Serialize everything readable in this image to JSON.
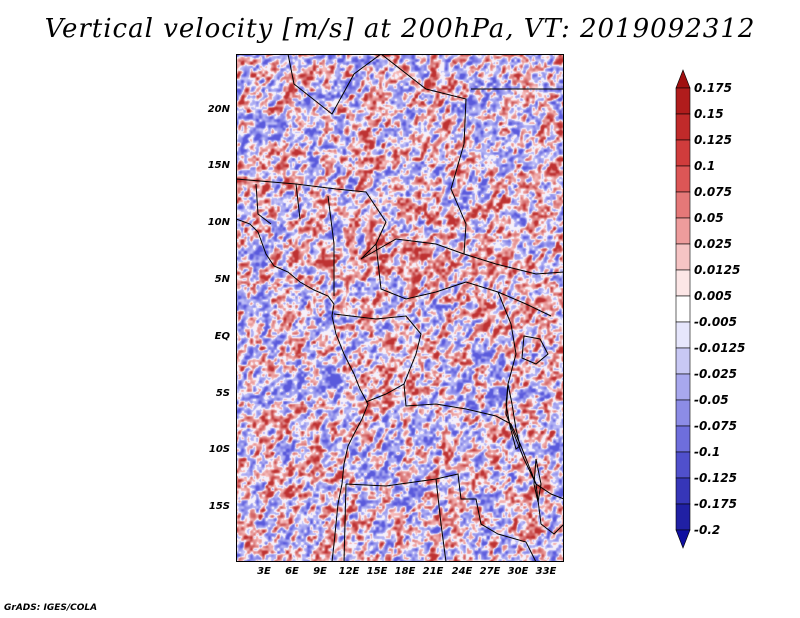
{
  "title": "Vertical velocity [m/s] at 200hPa, VT: 2019092312",
  "footer": "GrADS: IGES/COLA",
  "map": {
    "lat_labels": [
      "20N",
      "15N",
      "10N",
      "5N",
      "EQ",
      "5S",
      "10S",
      "15S"
    ],
    "lon_labels": [
      "3E",
      "6E",
      "9E",
      "12E",
      "15E",
      "18E",
      "21E",
      "24E",
      "27E",
      "30E",
      "33E"
    ]
  },
  "colorbar": {
    "labels": [
      "0.175",
      "0.15",
      "0.125",
      "0.1",
      "0.075",
      "0.05",
      "0.025",
      "0.0125",
      "0.005",
      "-0.005",
      "-0.0125",
      "-0.025",
      "-0.05",
      "-0.075",
      "-0.1",
      "-0.125",
      "-0.175",
      "-0.2"
    ],
    "colors": [
      "#a01010",
      "#b01c1c",
      "#c02a2a",
      "#d03c3c",
      "#dc5656",
      "#e57878",
      "#ee9c9c",
      "#f6c4c4",
      "#fce6e6",
      "#ffffff",
      "#e6e6fc",
      "#c8c8f4",
      "#a8a8ee",
      "#8c8ce6",
      "#6e6edc",
      "#5050cc",
      "#3636b8",
      "#2020a4",
      "#1010a0"
    ]
  }
}
